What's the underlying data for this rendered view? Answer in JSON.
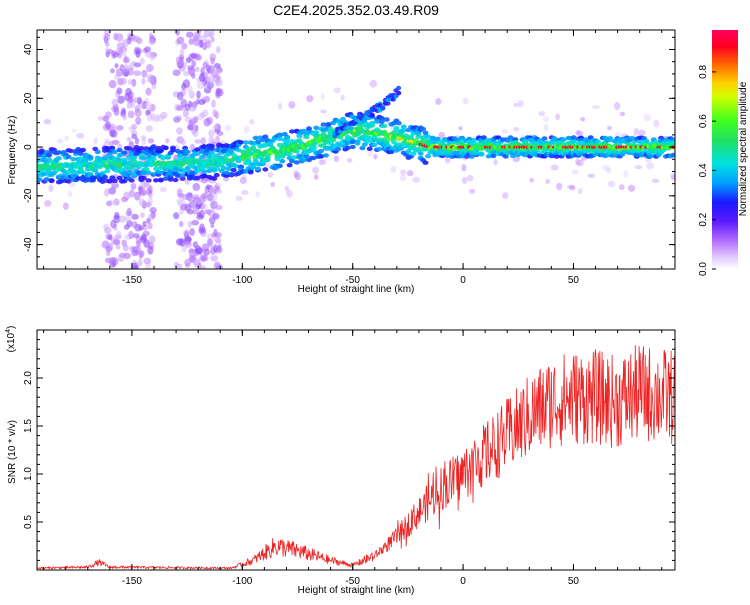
{
  "title": "C2E4.2025.352.03.49.R09",
  "colors": {
    "snr_line": "#ee2222",
    "colormap": [
      "#ffffff",
      "#e0c8ff",
      "#9b3dff",
      "#1a1aff",
      "#00c8ff",
      "#20e08a",
      "#40ff20",
      "#ffff00",
      "#ffa000",
      "#ff2000",
      "#ff0060"
    ]
  },
  "chart_data": [
    {
      "type": "heatmap",
      "name": "spectrogram",
      "xlabel": "Height of straight line (km)",
      "ylabel": "Frequency (Hz)",
      "xlim": [
        -193,
        96
      ],
      "ylim": [
        -50,
        48
      ],
      "xticks": [
        -150,
        -100,
        -50,
        0,
        50
      ],
      "yticks": [
        -40,
        -20,
        0,
        20,
        40
      ],
      "colorbar": {
        "label": "Normalized spectral amplitude",
        "range": [
          0.0,
          0.97
        ],
        "ticks": [
          0.0,
          0.2,
          0.4,
          0.6,
          0.8
        ]
      },
      "ridge": [
        {
          "x": -193,
          "f": -8
        },
        {
          "x": -150,
          "f": -7
        },
        {
          "x": -110,
          "f": -6
        },
        {
          "x": -100,
          "f": -4
        },
        {
          "x": -80,
          "f": -1
        },
        {
          "x": -60,
          "f": 4
        },
        {
          "x": -50,
          "f": 7
        },
        {
          "x": -40,
          "f": 6
        },
        {
          "x": -30,
          "f": 4
        },
        {
          "x": -15,
          "f": 0
        },
        {
          "x": 0,
          "f": 0
        },
        {
          "x": 96,
          "f": 0
        }
      ],
      "branch": [
        {
          "x": -58,
          "f": 6
        },
        {
          "x": -45,
          "f": 12
        },
        {
          "x": -35,
          "f": 18
        },
        {
          "x": -28,
          "f": 24
        }
      ]
    },
    {
      "type": "line",
      "name": "snr",
      "xlabel": "Height of straight line (km)",
      "ylabel": "SNR (10 * v/v)",
      "yscale_label": "(x10",
      "yscale_exp": "4",
      "yscale_close": ")",
      "xlim": [
        -193,
        96
      ],
      "ylim": [
        0,
        2.5
      ],
      "xticks": [
        -150,
        -100,
        -50,
        0,
        50
      ],
      "yticks": [
        0.5,
        1.0,
        1.5,
        2.0
      ],
      "envelope": [
        {
          "x": -193,
          "y": 0.02
        },
        {
          "x": -170,
          "y": 0.03
        },
        {
          "x": -165,
          "y": 0.08
        },
        {
          "x": -160,
          "y": 0.03
        },
        {
          "x": -105,
          "y": 0.02
        },
        {
          "x": -95,
          "y": 0.1
        },
        {
          "x": -85,
          "y": 0.25
        },
        {
          "x": -75,
          "y": 0.2
        },
        {
          "x": -60,
          "y": 0.1
        },
        {
          "x": -50,
          "y": 0.05
        },
        {
          "x": -40,
          "y": 0.15
        },
        {
          "x": -30,
          "y": 0.35
        },
        {
          "x": -20,
          "y": 0.6
        },
        {
          "x": -10,
          "y": 0.85
        },
        {
          "x": 0,
          "y": 1.0
        },
        {
          "x": 10,
          "y": 1.2
        },
        {
          "x": 20,
          "y": 1.4
        },
        {
          "x": 30,
          "y": 1.6
        },
        {
          "x": 40,
          "y": 1.75
        },
        {
          "x": 50,
          "y": 1.8
        },
        {
          "x": 60,
          "y": 1.8
        },
        {
          "x": 70,
          "y": 1.75
        },
        {
          "x": 80,
          "y": 1.85
        },
        {
          "x": 96,
          "y": 1.8
        }
      ]
    }
  ]
}
